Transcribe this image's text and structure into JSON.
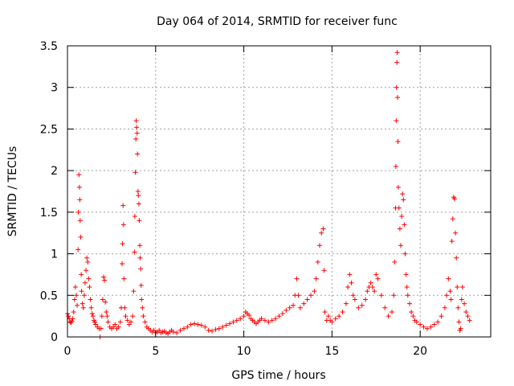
{
  "chart_data": {
    "type": "scatter",
    "title": "Day 064 of 2014, SRMTID for receiver func",
    "xlabel": "GPS time / hours",
    "ylabel": "SRMTID / TECUs",
    "xlim": [
      0,
      24
    ],
    "ylim": [
      0,
      3.5
    ],
    "xticks": [
      0,
      5,
      10,
      15,
      20
    ],
    "xtick_labels": [
      "0",
      "5",
      "10",
      "15",
      "20"
    ],
    "yticks": [
      0,
      0.5,
      1,
      1.5,
      2,
      2.5,
      3,
      3.5
    ],
    "ytick_labels": [
      "0",
      "0.5",
      "1",
      "1.5",
      "2",
      "2.5",
      "3",
      "3.5"
    ],
    "grid": true,
    "marker": "+",
    "color": "#ff0000",
    "series": [
      {
        "name": "SRMTID",
        "points": [
          [
            0.0,
            0.28
          ],
          [
            0.05,
            0.25
          ],
          [
            0.1,
            0.22
          ],
          [
            0.15,
            0.18
          ],
          [
            0.2,
            0.17
          ],
          [
            0.25,
            0.19
          ],
          [
            0.3,
            0.22
          ],
          [
            0.35,
            0.3
          ],
          [
            0.4,
            0.45
          ],
          [
            0.45,
            0.6
          ],
          [
            0.5,
            0.5
          ],
          [
            0.55,
            0.38
          ],
          [
            0.6,
            1.05
          ],
          [
            0.62,
            1.5
          ],
          [
            0.65,
            1.95
          ],
          [
            0.68,
            1.8
          ],
          [
            0.7,
            1.65
          ],
          [
            0.72,
            1.4
          ],
          [
            0.75,
            1.2
          ],
          [
            0.78,
            0.75
          ],
          [
            0.8,
            0.55
          ],
          [
            0.85,
            0.4
          ],
          [
            0.9,
            0.35
          ],
          [
            0.95,
            0.5
          ],
          [
            1.0,
            0.65
          ],
          [
            1.05,
            0.8
          ],
          [
            1.1,
            0.95
          ],
          [
            1.15,
            0.9
          ],
          [
            1.2,
            0.7
          ],
          [
            1.25,
            0.6
          ],
          [
            1.3,
            0.45
          ],
          [
            1.35,
            0.35
          ],
          [
            1.4,
            0.28
          ],
          [
            1.45,
            0.25
          ],
          [
            1.5,
            0.2
          ],
          [
            1.55,
            0.18
          ],
          [
            1.6,
            0.15
          ],
          [
            1.7,
            0.12
          ],
          [
            1.8,
            0.1
          ],
          [
            1.85,
            0.0
          ],
          [
            1.9,
            0.1
          ],
          [
            1.95,
            0.25
          ],
          [
            2.0,
            0.45
          ],
          [
            2.05,
            0.72
          ],
          [
            2.1,
            0.68
          ],
          [
            2.15,
            0.42
          ],
          [
            2.2,
            0.3
          ],
          [
            2.25,
            0.25
          ],
          [
            2.3,
            0.18
          ],
          [
            2.4,
            0.12
          ],
          [
            2.5,
            0.1
          ],
          [
            2.6,
            0.12
          ],
          [
            2.7,
            0.15
          ],
          [
            2.8,
            0.1
          ],
          [
            2.9,
            0.12
          ],
          [
            3.0,
            0.18
          ],
          [
            3.05,
            0.35
          ],
          [
            3.1,
            0.88
          ],
          [
            3.12,
            1.12
          ],
          [
            3.15,
            1.58
          ],
          [
            3.18,
            1.35
          ],
          [
            3.2,
            0.7
          ],
          [
            3.25,
            0.35
          ],
          [
            3.3,
            0.25
          ],
          [
            3.4,
            0.2
          ],
          [
            3.5,
            0.15
          ],
          [
            3.6,
            0.18
          ],
          [
            3.7,
            0.25
          ],
          [
            3.75,
            0.55
          ],
          [
            3.8,
            1.02
          ],
          [
            3.82,
            1.45
          ],
          [
            3.85,
            1.98
          ],
          [
            3.88,
            2.38
          ],
          [
            3.9,
            2.6
          ],
          [
            3.92,
            2.52
          ],
          [
            3.95,
            2.45
          ],
          [
            3.97,
            2.2
          ],
          [
            4.0,
            1.75
          ],
          [
            4.02,
            1.7
          ],
          [
            4.05,
            1.6
          ],
          [
            4.07,
            1.4
          ],
          [
            4.1,
            1.1
          ],
          [
            4.12,
            0.95
          ],
          [
            4.15,
            0.82
          ],
          [
            4.18,
            0.62
          ],
          [
            4.2,
            0.45
          ],
          [
            4.25,
            0.35
          ],
          [
            4.3,
            0.25
          ],
          [
            4.4,
            0.18
          ],
          [
            4.5,
            0.12
          ],
          [
            4.6,
            0.1
          ],
          [
            4.7,
            0.08
          ],
          [
            4.8,
            0.06
          ],
          [
            4.9,
            0.08
          ],
          [
            5.0,
            0.05
          ],
          [
            5.1,
            0.06
          ],
          [
            5.2,
            0.08
          ],
          [
            5.3,
            0.05
          ],
          [
            5.4,
            0.06
          ],
          [
            5.5,
            0.07
          ],
          [
            5.6,
            0.05
          ],
          [
            5.7,
            0.04
          ],
          [
            5.8,
            0.06
          ],
          [
            5.9,
            0.08
          ],
          [
            6.0,
            0.06
          ],
          [
            6.2,
            0.05
          ],
          [
            6.4,
            0.08
          ],
          [
            6.6,
            0.1
          ],
          [
            6.8,
            0.12
          ],
          [
            7.0,
            0.15
          ],
          [
            7.2,
            0.16
          ],
          [
            7.4,
            0.15
          ],
          [
            7.6,
            0.14
          ],
          [
            7.8,
            0.12
          ],
          [
            8.0,
            0.08
          ],
          [
            8.2,
            0.07
          ],
          [
            8.4,
            0.09
          ],
          [
            8.6,
            0.1
          ],
          [
            8.8,
            0.12
          ],
          [
            9.0,
            0.14
          ],
          [
            9.2,
            0.16
          ],
          [
            9.4,
            0.18
          ],
          [
            9.6,
            0.2
          ],
          [
            9.8,
            0.22
          ],
          [
            10.0,
            0.25
          ],
          [
            10.1,
            0.3
          ],
          [
            10.2,
            0.28
          ],
          [
            10.3,
            0.26
          ],
          [
            10.4,
            0.22
          ],
          [
            10.5,
            0.2
          ],
          [
            10.6,
            0.18
          ],
          [
            10.7,
            0.16
          ],
          [
            10.8,
            0.18
          ],
          [
            10.9,
            0.2
          ],
          [
            11.0,
            0.22
          ],
          [
            11.2,
            0.2
          ],
          [
            11.4,
            0.18
          ],
          [
            11.6,
            0.2
          ],
          [
            11.8,
            0.22
          ],
          [
            12.0,
            0.25
          ],
          [
            12.2,
            0.28
          ],
          [
            12.4,
            0.32
          ],
          [
            12.6,
            0.35
          ],
          [
            12.8,
            0.38
          ],
          [
            12.9,
            0.5
          ],
          [
            13.0,
            0.7
          ],
          [
            13.1,
            0.5
          ],
          [
            13.2,
            0.35
          ],
          [
            13.4,
            0.4
          ],
          [
            13.6,
            0.45
          ],
          [
            13.8,
            0.5
          ],
          [
            14.0,
            0.55
          ],
          [
            14.1,
            0.7
          ],
          [
            14.2,
            0.9
          ],
          [
            14.3,
            1.1
          ],
          [
            14.4,
            1.25
          ],
          [
            14.5,
            1.3
          ],
          [
            14.55,
            0.8
          ],
          [
            14.6,
            0.3
          ],
          [
            14.7,
            0.2
          ],
          [
            14.8,
            0.25
          ],
          [
            14.9,
            0.2
          ],
          [
            15.0,
            0.18
          ],
          [
            15.2,
            0.22
          ],
          [
            15.4,
            0.25
          ],
          [
            15.6,
            0.3
          ],
          [
            15.8,
            0.4
          ],
          [
            15.9,
            0.6
          ],
          [
            16.0,
            0.75
          ],
          [
            16.1,
            0.65
          ],
          [
            16.2,
            0.5
          ],
          [
            16.3,
            0.45
          ],
          [
            16.5,
            0.35
          ],
          [
            16.7,
            0.38
          ],
          [
            16.9,
            0.45
          ],
          [
            17.0,
            0.55
          ],
          [
            17.1,
            0.6
          ],
          [
            17.2,
            0.65
          ],
          [
            17.3,
            0.6
          ],
          [
            17.4,
            0.55
          ],
          [
            17.5,
            0.75
          ],
          [
            17.6,
            0.7
          ],
          [
            17.8,
            0.5
          ],
          [
            18.0,
            0.35
          ],
          [
            18.2,
            0.25
          ],
          [
            18.4,
            0.3
          ],
          [
            18.5,
            0.5
          ],
          [
            18.55,
            0.9
          ],
          [
            18.6,
            1.55
          ],
          [
            18.62,
            2.05
          ],
          [
            18.64,
            2.6
          ],
          [
            18.66,
            3.0
          ],
          [
            18.68,
            3.3
          ],
          [
            18.7,
            3.42
          ],
          [
            18.72,
            2.88
          ],
          [
            18.74,
            2.35
          ],
          [
            18.76,
            1.8
          ],
          [
            18.8,
            1.55
          ],
          [
            18.85,
            1.3
          ],
          [
            18.9,
            1.1
          ],
          [
            18.95,
            1.45
          ],
          [
            19.0,
            1.72
          ],
          [
            19.05,
            1.65
          ],
          [
            19.1,
            1.35
          ],
          [
            19.15,
            1.0
          ],
          [
            19.2,
            0.75
          ],
          [
            19.25,
            0.6
          ],
          [
            19.3,
            0.5
          ],
          [
            19.4,
            0.4
          ],
          [
            19.5,
            0.3
          ],
          [
            19.6,
            0.25
          ],
          [
            19.7,
            0.2
          ],
          [
            19.8,
            0.18
          ],
          [
            20.0,
            0.15
          ],
          [
            20.2,
            0.12
          ],
          [
            20.4,
            0.1
          ],
          [
            20.6,
            0.12
          ],
          [
            20.8,
            0.15
          ],
          [
            21.0,
            0.18
          ],
          [
            21.2,
            0.25
          ],
          [
            21.4,
            0.35
          ],
          [
            21.5,
            0.5
          ],
          [
            21.6,
            0.7
          ],
          [
            21.7,
            0.55
          ],
          [
            21.75,
            0.45
          ],
          [
            21.8,
            1.15
          ],
          [
            21.85,
            1.42
          ],
          [
            21.9,
            1.68
          ],
          [
            21.95,
            1.66
          ],
          [
            22.0,
            1.25
          ],
          [
            22.05,
            0.95
          ],
          [
            22.1,
            0.6
          ],
          [
            22.15,
            0.35
          ],
          [
            22.2,
            0.18
          ],
          [
            22.25,
            0.08
          ],
          [
            22.3,
            0.1
          ],
          [
            22.35,
            0.45
          ],
          [
            22.4,
            0.6
          ],
          [
            22.5,
            0.4
          ],
          [
            22.6,
            0.3
          ],
          [
            22.7,
            0.25
          ],
          [
            22.8,
            0.2
          ]
        ]
      }
    ]
  }
}
